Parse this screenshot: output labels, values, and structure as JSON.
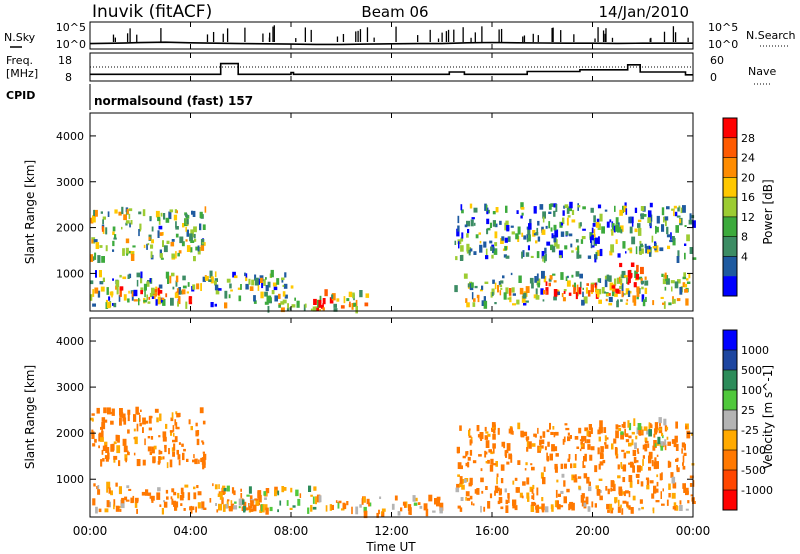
{
  "header": {
    "station": "Inuvik (fitACF)",
    "beam": "Beam 06",
    "date": "14/Jan/2010"
  },
  "top_panel": {
    "left_label": "N.Sky",
    "left_ticks": [
      "10^5",
      "10^0"
    ],
    "right_ticks": [
      "10^5",
      "10^0"
    ],
    "right_label": "N.Search"
  },
  "freq_panel": {
    "left_label_1": "Freq.",
    "left_label_2": "[MHz]",
    "left_ticks": [
      "18",
      "8"
    ],
    "right_ticks": [
      "60",
      "0"
    ],
    "right_label": "Nave"
  },
  "cpid_panel": {
    "label": "CPID",
    "text": "normalsound (fast) 157"
  },
  "power_panel": {
    "ylabel": "Slant Range [km]",
    "yticks": [
      "4000",
      "3000",
      "2000",
      "1000"
    ],
    "colorbar_label": "Power [dB]",
    "colorbar_ticks": [
      "28",
      "24",
      "20",
      "16",
      "12",
      "8",
      "4"
    ],
    "colorbar_colors": [
      "#ff0000",
      "#ff5a00",
      "#ff8c00",
      "#ffc800",
      "#9ccc32",
      "#3caa3c",
      "#3c8c64",
      "#1e5aa0",
      "#0000ff"
    ]
  },
  "velocity_panel": {
    "ylabel": "Slant Range [km]",
    "yticks": [
      "4000",
      "3000",
      "2000",
      "1000"
    ],
    "colorbar_label": "Velocity [m s^-1]",
    "colorbar_ticks": [
      "1000",
      "500",
      "100",
      "25",
      "-25",
      "-100",
      "-500",
      "-1000"
    ],
    "colorbar_colors": [
      "#0000ff",
      "#1e46a0",
      "#2d8c5a",
      "#50c83c",
      "#b4b4b4",
      "#ffaa00",
      "#ff7800",
      "#ff4600",
      "#ff0000"
    ]
  },
  "xaxis": {
    "ticks": [
      "00:00",
      "04:00",
      "08:00",
      "12:00",
      "16:00",
      "20:00",
      "00:00"
    ],
    "label": "Time UT"
  },
  "chart_data": [
    {
      "type": "line",
      "ylabel": "N.Sky",
      "ylabel_right": "N.Search",
      "yscale": "log",
      "ylim": [
        1,
        100000
      ],
      "xlim": [
        0,
        24
      ],
      "x": [
        0,
        1,
        2,
        3,
        4,
        5,
        6,
        7,
        8,
        9,
        10,
        11,
        12,
        13,
        14,
        15,
        16,
        17,
        18,
        19,
        20,
        21,
        22,
        23,
        24
      ],
      "series": [
        {
          "values": [
            10,
            12,
            15,
            18,
            14,
            12,
            10,
            9,
            8,
            7,
            7,
            8,
            9,
            10,
            10,
            14,
            16,
            14,
            13,
            12,
            12,
            11,
            12,
            12,
            12
          ]
        }
      ]
    },
    {
      "type": "line",
      "ylabel": "Freq. [MHz]",
      "ylabel_right": "Nave",
      "ylim": [
        8,
        18
      ],
      "ylim_right": [
        0,
        60
      ],
      "xlim": [
        0,
        24
      ],
      "series": [
        {
          "x": [
            0,
            5.2,
            5.2,
            5.9,
            5.9,
            8,
            8,
            8.1,
            8.1,
            14.3,
            14.3,
            14.9,
            14.9,
            17.4,
            17.4,
            19.5,
            19.5,
            21.4,
            21.4,
            21.9,
            21.9,
            23.7,
            23.7,
            24
          ],
          "values": [
            10.4,
            10.4,
            14.2,
            14.2,
            10.4,
            10.4,
            11.0,
            11.0,
            10.4,
            10.4,
            11.2,
            11.2,
            10.4,
            10.4,
            11.4,
            11.4,
            12.0,
            12.0,
            13.8,
            13.8,
            11.2,
            11.2,
            10.2,
            10.2
          ]
        },
        {
          "values": [
            30,
            30
          ]
        }
      ]
    },
    {
      "type": "heatmap",
      "title": "Power [dB]",
      "xlim": [
        0,
        24
      ],
      "ylim": [
        180,
        4500
      ],
      "ylabel": "Slant Range [km]",
      "colorbar": [
        0,
        32
      ],
      "cells": [
        {
          "t": [
            0,
            4.6
          ],
          "r": [
            1300,
            2400
          ],
          "value": 14
        },
        {
          "t": [
            0,
            8
          ],
          "r": [
            300,
            1000
          ],
          "value": 12
        },
        {
          "t": [
            1,
            4
          ],
          "r": [
            400,
            700
          ],
          "value": 22
        },
        {
          "t": [
            7,
            11
          ],
          "r": [
            200,
            600
          ],
          "value": 18
        },
        {
          "t": [
            8.5,
            10
          ],
          "r": [
            200,
            400
          ],
          "value": 28
        },
        {
          "t": [
            14.5,
            24
          ],
          "r": [
            1300,
            2500
          ],
          "value": 10
        },
        {
          "t": [
            14.5,
            24
          ],
          "r": [
            300,
            1000
          ],
          "value": 14
        },
        {
          "t": [
            18,
            22
          ],
          "r": [
            500,
            800
          ],
          "value": 26
        },
        {
          "t": [
            21,
            22
          ],
          "r": [
            800,
            1200
          ],
          "value": 28
        }
      ]
    },
    {
      "type": "heatmap",
      "title": "Velocity [m s^-1]",
      "xlim": [
        0,
        24
      ],
      "ylim": [
        180,
        4500
      ],
      "ylabel": "Slant Range [km]",
      "colorbar": [
        -1000,
        1000
      ],
      "cells": [
        {
          "t": [
            0,
            4.5
          ],
          "r": [
            1300,
            2500
          ],
          "value": -200
        },
        {
          "t": [
            0,
            7
          ],
          "r": [
            300,
            900
          ],
          "value": -150
        },
        {
          "t": [
            5,
            9
          ],
          "r": [
            300,
            800
          ],
          "value": 0
        },
        {
          "t": [
            9,
            14
          ],
          "r": [
            200,
            600
          ],
          "value": -100
        },
        {
          "t": [
            14.5,
            24
          ],
          "r": [
            1200,
            2200
          ],
          "value": -200
        },
        {
          "t": [
            14.5,
            24
          ],
          "r": [
            300,
            1100
          ],
          "value": -150
        },
        {
          "t": [
            21,
            23
          ],
          "r": [
            1700,
            2300
          ],
          "value": 0
        }
      ]
    }
  ]
}
